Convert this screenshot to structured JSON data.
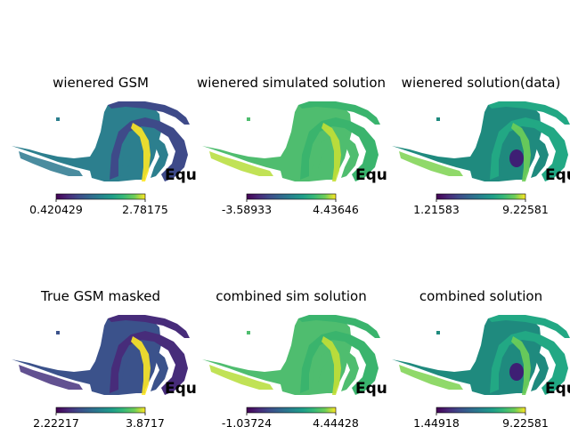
{
  "chart_data": [
    {
      "type": "heatmap",
      "title": "wienered GSM",
      "projection": "Mollweide (partial sky, masked)",
      "coordsys_label": "Equ",
      "colormap": "viridis",
      "colorbar": {
        "min": 0.420429,
        "max": 2.78175,
        "min_label": "0.420429",
        "max_label": "2.78175"
      },
      "style": "gsm"
    },
    {
      "type": "heatmap",
      "title": "wienered simulated solution",
      "projection": "Mollweide (partial sky, masked)",
      "coordsys_label": "Equ",
      "colormap": "viridis",
      "colorbar": {
        "min": -3.58933,
        "max": 4.43646,
        "min_label": "-3.58933",
        "max_label": "4.43646"
      },
      "style": "sim"
    },
    {
      "type": "heatmap",
      "title": "wienered solution(data)",
      "projection": "Mollweide (partial sky, masked)",
      "coordsys_label": "Equ",
      "colormap": "viridis",
      "colorbar": {
        "min": 1.21583,
        "max": 9.22581,
        "min_label": "1.21583",
        "max_label": "9.22581"
      },
      "style": "data"
    },
    {
      "type": "heatmap",
      "title": "True GSM masked",
      "projection": "Mollweide (partial sky, masked)",
      "coordsys_label": "Equ",
      "colormap": "viridis",
      "colorbar": {
        "min": 2.22217,
        "max": 3.8717,
        "min_label": "2.22217",
        "max_label": "3.8717"
      },
      "style": "true"
    },
    {
      "type": "heatmap",
      "title": "combined sim solution",
      "projection": "Mollweide (partial sky, masked)",
      "coordsys_label": "Equ",
      "colormap": "viridis",
      "colorbar": {
        "min": -1.03724,
        "max": 4.44428,
        "min_label": "-1.03724",
        "max_label": "4.44428"
      },
      "style": "sim"
    },
    {
      "type": "heatmap",
      "title": "combined solution",
      "projection": "Mollweide (partial sky, masked)",
      "coordsys_label": "Equ",
      "colormap": "viridis",
      "colorbar": {
        "min": 1.44918,
        "max": 9.22581,
        "min_label": "1.44918",
        "max_label": "9.22581"
      },
      "style": "data"
    }
  ]
}
